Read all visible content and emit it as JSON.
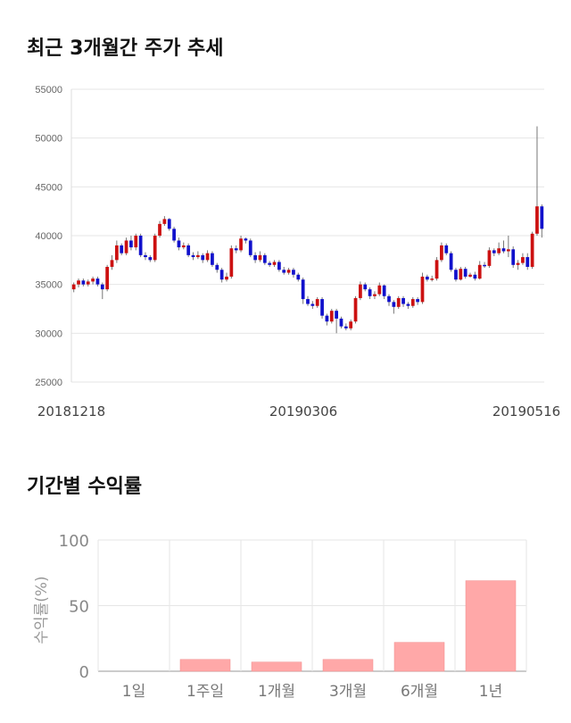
{
  "sections": {
    "price_title": "최근 3개월간 주가 추세",
    "returns_title": "기간별 수익률"
  },
  "colors": {
    "up": "#cc1111",
    "down": "#1111cc",
    "bar": "#ffa8a8",
    "grid": "#e6e6e6"
  },
  "chart_data": [
    {
      "type": "candlestick",
      "title": "최근 3개월간 주가 추세",
      "ylim": [
        25000,
        55000
      ],
      "yticks": [
        25000,
        30000,
        35000,
        40000,
        45000,
        50000,
        55000
      ],
      "x_tick_labels": [
        "20181218",
        "20190306",
        "20190516"
      ],
      "grid": true,
      "candles": [
        [
          34500,
          35000,
          35200,
          34200
        ],
        [
          35000,
          35400,
          35600,
          34700
        ],
        [
          35400,
          35000,
          35600,
          34800
        ],
        [
          35000,
          35300,
          35500,
          34800
        ],
        [
          35300,
          35600,
          35800,
          35000
        ],
        [
          35600,
          35000,
          35800,
          34800
        ],
        [
          35000,
          34500,
          35200,
          33500
        ],
        [
          34500,
          36800,
          37000,
          34300
        ],
        [
          36800,
          37500,
          38000,
          36500
        ],
        [
          37500,
          39000,
          39500,
          37200
        ],
        [
          39000,
          38200,
          39200,
          38000
        ],
        [
          38200,
          39500,
          39800,
          38000
        ],
        [
          39500,
          38800,
          40000,
          38500
        ],
        [
          38800,
          40000,
          40200,
          38500
        ],
        [
          40000,
          38000,
          40200,
          37800
        ],
        [
          38000,
          37800,
          38300,
          37500
        ],
        [
          37800,
          37500,
          38000,
          37300
        ],
        [
          37500,
          40000,
          40200,
          37300
        ],
        [
          40000,
          41200,
          41500,
          39800
        ],
        [
          41200,
          41700,
          42000,
          41000
        ],
        [
          41700,
          40700,
          41800,
          40500
        ],
        [
          40700,
          39500,
          40900,
          39300
        ],
        [
          39500,
          38800,
          39800,
          38500
        ],
        [
          38800,
          39000,
          39300,
          38600
        ],
        [
          39000,
          38000,
          39200,
          37800
        ],
        [
          38000,
          37800,
          38300,
          37500
        ],
        [
          37800,
          38000,
          38400,
          37600
        ],
        [
          38000,
          37500,
          38200,
          37200
        ],
        [
          37500,
          38200,
          38500,
          37300
        ],
        [
          38200,
          37000,
          38400,
          36800
        ],
        [
          37000,
          36500,
          37200,
          36200
        ],
        [
          36500,
          35500,
          36700,
          35200
        ],
        [
          35500,
          35800,
          36200,
          35300
        ],
        [
          35800,
          38700,
          39000,
          35600
        ],
        [
          38700,
          38500,
          39000,
          38200
        ],
        [
          38500,
          39700,
          40000,
          38300
        ],
        [
          39700,
          39500,
          39800,
          39200
        ],
        [
          39500,
          38000,
          39700,
          37800
        ],
        [
          38000,
          37500,
          38300,
          37200
        ],
        [
          37500,
          38000,
          38400,
          37300
        ],
        [
          38000,
          37200,
          38200,
          37000
        ],
        [
          37200,
          37000,
          37400,
          36800
        ],
        [
          37000,
          37300,
          37500,
          36800
        ],
        [
          37300,
          36500,
          37500,
          36300
        ],
        [
          36500,
          36200,
          36800,
          36000
        ],
        [
          36200,
          36500,
          36700,
          36000
        ],
        [
          36500,
          36000,
          36700,
          35700
        ],
        [
          36000,
          35500,
          36200,
          35300
        ],
        [
          35500,
          33500,
          35700,
          33000
        ],
        [
          33500,
          33000,
          33800,
          32800
        ],
        [
          33000,
          32800,
          33300,
          32500
        ],
        [
          32800,
          33500,
          33700,
          32600
        ],
        [
          33500,
          31800,
          33700,
          31500
        ],
        [
          31800,
          31200,
          32000,
          30800
        ],
        [
          31200,
          32300,
          32500,
          31000
        ],
        [
          32300,
          31500,
          32500,
          30000
        ],
        [
          31500,
          30700,
          31700,
          30500
        ],
        [
          30700,
          30500,
          31000,
          30300
        ],
        [
          30500,
          31200,
          31400,
          30300
        ],
        [
          31200,
          33600,
          33800,
          31000
        ],
        [
          33600,
          35000,
          35300,
          33400
        ],
        [
          35000,
          34500,
          35200,
          34300
        ],
        [
          34500,
          33800,
          34700,
          33500
        ],
        [
          33800,
          34000,
          34300,
          33500
        ],
        [
          34000,
          34900,
          35200,
          33800
        ],
        [
          34900,
          33800,
          35000,
          33500
        ],
        [
          33800,
          33200,
          34000,
          32800
        ],
        [
          33200,
          32700,
          33400,
          32000
        ],
        [
          32700,
          33600,
          33800,
          32500
        ],
        [
          33600,
          33000,
          33800,
          32700
        ],
        [
          33000,
          32800,
          33200,
          32500
        ],
        [
          32800,
          33500,
          33700,
          32600
        ],
        [
          33500,
          33200,
          33700,
          32900
        ],
        [
          33200,
          35800,
          36200,
          33000
        ],
        [
          35800,
          35500,
          36000,
          35300
        ],
        [
          35500,
          35600,
          35900,
          35300
        ],
        [
          35600,
          37500,
          37800,
          35400
        ],
        [
          37500,
          39000,
          39300,
          37300
        ],
        [
          39000,
          38200,
          39200,
          38000
        ],
        [
          38200,
          36500,
          38400,
          36300
        ],
        [
          36500,
          35500,
          36700,
          35300
        ],
        [
          35500,
          36600,
          36800,
          35400
        ],
        [
          36600,
          35800,
          36800,
          35600
        ],
        [
          35800,
          36000,
          36200,
          35700
        ],
        [
          36000,
          35600,
          36300,
          35400
        ],
        [
          35600,
          37000,
          37400,
          35500
        ],
        [
          37000,
          36900,
          37300,
          36700
        ],
        [
          36900,
          38500,
          38800,
          36700
        ],
        [
          38500,
          38200,
          38700,
          37900
        ],
        [
          38200,
          38700,
          39300,
          38000
        ],
        [
          38700,
          38400,
          39500,
          38200
        ],
        [
          38400,
          38600,
          40000,
          37800
        ],
        [
          38600,
          37000,
          38900,
          36700
        ],
        [
          37000,
          37200,
          37500,
          36500
        ],
        [
          37200,
          37800,
          38200,
          37000
        ],
        [
          37800,
          36800,
          38200,
          36500
        ],
        [
          36800,
          40200,
          40400,
          36600
        ],
        [
          40200,
          43000,
          51200,
          40000
        ],
        [
          43000,
          40700,
          43200,
          39800
        ]
      ]
    },
    {
      "type": "bar",
      "categories": [
        "1일",
        "1주일",
        "1개월",
        "3개월",
        "6개월",
        "1년"
      ],
      "values": [
        0,
        9,
        7,
        9,
        22,
        69
      ],
      "ylabel": "수익률(%)",
      "ylim": [
        0,
        100
      ],
      "yticks": [
        0,
        50,
        100
      ]
    }
  ]
}
